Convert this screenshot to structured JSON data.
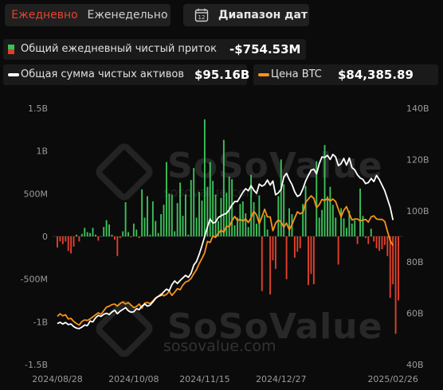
{
  "toolbar": {
    "daily_label": "Ежедневно",
    "weekly_label": "Еженедельно",
    "range_icon_text": "12",
    "range_label": "Диапазон дат"
  },
  "legend": {
    "flow_label": "Общий ежедневный чистый приток",
    "flow_value": "-$754.53M",
    "assets_label": "Общая сумма чистых активов",
    "assets_value": "$95.16B",
    "btc_label": "Цена BTC",
    "btc_value": "$84,385.89"
  },
  "watermark": {
    "brand": "SoSoValue",
    "url": "sosovalue.com"
  },
  "colors": {
    "inflow": "#3cc15a",
    "outflow": "#e2402b",
    "assets_line": "#ffffff",
    "btc_line": "#f7931a",
    "background": "#0b0b0b"
  },
  "chart_data": {
    "type": "bar",
    "xlabel": "",
    "ylabel": "",
    "left_axis": {
      "ylim": [
        -1.5,
        1.5
      ],
      "unit": "B",
      "ticks": [
        "1.5B",
        "1B",
        "500M",
        "0",
        "-500M",
        "-1B",
        "-1.5B"
      ]
    },
    "right_axis": {
      "ylim": [
        40,
        140
      ],
      "unit": "B / K",
      "ticks": [
        "140B",
        "120B",
        "100B",
        "80B",
        "60B",
        "40B"
      ]
    },
    "x_tick_labels": [
      "2024/08/28",
      "2024/10/08",
      "2024/11/15",
      "2024/12/27",
      "2025/02/26"
    ],
    "x_tick_index": [
      0,
      28,
      54,
      82,
      123
    ],
    "series": [
      {
        "name": "Общий ежедневный чистый приток",
        "kind": "bar",
        "axis": "left",
        "unit": "B",
        "values": [
          -0.13,
          -0.06,
          -0.09,
          -0.06,
          -0.17,
          -0.2,
          -0.12,
          0.02,
          -0.06,
          0.03,
          0.1,
          0.05,
          0.04,
          0.1,
          0.02,
          -0.05,
          0.0,
          0.11,
          0.19,
          0.14,
          0.02,
          -0.04,
          -0.23,
          -0.02,
          0.06,
          0.4,
          0.05,
          -0.01,
          0.15,
          0.08,
          -0.02,
          0.55,
          0.22,
          0.47,
          0.02,
          0.41,
          0.18,
          0.04,
          0.26,
          0.37,
          0.87,
          0.5,
          0.49,
          0.06,
          0.39,
          0.63,
          0.24,
          0.49,
          0.02,
          0.66,
          0.8,
          0.22,
          0.52,
          0.42,
          1.37,
          0.58,
          0.87,
          0.65,
          0.49,
          0.18,
          0.45,
          1.13,
          0.51,
          0.7,
          0.67,
          0.13,
          0.22,
          0.38,
          0.41,
          0.27,
          0.11,
          0.72,
          0.4,
          0.15,
          0.48,
          -0.64,
          0.25,
          0.08,
          -0.68,
          -0.28,
          -0.38,
          0.47,
          0.9,
          0.61,
          -0.5,
          0.33,
          0.26,
          -0.25,
          -0.18,
          -0.14,
          0.38,
          0.59,
          -0.57,
          -0.44,
          -0.56,
          0.88,
          0.22,
          0.31,
          1.07,
          0.47,
          0.58,
          0.37,
          0.22,
          -0.33,
          0.33,
          0.21,
          0.1,
          0.3,
          0.15,
          0.19,
          -0.09,
          0.56,
          0.24,
          -0.02,
          -0.09,
          0.09,
          -0.06,
          -0.14,
          -0.17,
          -0.15,
          -0.1,
          -0.23,
          -0.72,
          -0.56,
          -1.14,
          -0.75
        ]
      },
      {
        "name": "Общая сумма чистых активов",
        "kind": "line",
        "axis": "right",
        "unit": "B",
        "values": [
          56.0,
          56.5,
          55.8,
          56.4,
          55.6,
          55.8,
          54.8,
          54.2,
          54.0,
          54.6,
          55.4,
          55.2,
          57.0,
          56.6,
          58.2,
          59.2,
          58.8,
          59.6,
          60.0,
          59.5,
          60.5,
          61.2,
          59.8,
          60.8,
          61.5,
          62.2,
          61.0,
          60.4,
          60.6,
          61.8,
          61.4,
          62.8,
          63.6,
          62.8,
          63.2,
          64.4,
          65.8,
          66.6,
          67.0,
          68.4,
          69.4,
          68.8,
          71.2,
          72.6,
          71.6,
          72.8,
          73.8,
          74.8,
          74.0,
          75.6,
          78.8,
          80.2,
          83.0,
          86.4,
          90.0,
          93.6,
          96.8,
          95.2,
          95.6,
          97.4,
          98.0,
          98.6,
          99.0,
          100.4,
          102.2,
          103.6,
          103.6,
          105.4,
          107.2,
          108.6,
          107.8,
          109.8,
          108.0,
          106.8,
          110.4,
          109.6,
          110.2,
          112.0,
          110.0,
          111.6,
          106.2,
          107.0,
          108.4,
          113.2,
          114.6,
          112.2,
          110.2,
          107.4,
          105.6,
          106.2,
          108.6,
          111.6,
          113.8,
          115.8,
          116.2,
          114.4,
          118.4,
          121.0,
          120.8,
          121.6,
          120.0,
          122.0,
          121.0,
          117.6,
          118.4,
          120.4,
          117.8,
          120.6,
          116.8,
          116.0,
          114.0,
          112.8,
          112.2,
          110.6,
          111.0,
          112.6,
          111.4,
          113.8,
          112.2,
          110.0,
          107.8,
          104.6,
          101.4,
          96.4
        ]
      },
      {
        "name": "Цена BTC",
        "kind": "line",
        "axis": "right",
        "unit": "K",
        "values": [
          58.8,
          59.8,
          59.0,
          59.4,
          57.8,
          58.0,
          56.8,
          56.0,
          55.4,
          56.8,
          57.4,
          57.2,
          57.8,
          58.6,
          59.4,
          60.2,
          59.6,
          61.0,
          62.4,
          62.8,
          63.4,
          63.6,
          62.8,
          63.8,
          64.4,
          63.6,
          64.2,
          63.2,
          62.2,
          62.6,
          63.6,
          62.0,
          64.0,
          64.2,
          63.8,
          64.8,
          66.0,
          66.6,
          67.6,
          66.8,
          67.4,
          68.6,
          67.0,
          68.2,
          69.6,
          69.2,
          71.0,
          72.2,
          72.6,
          73.6,
          75.4,
          77.0,
          79.4,
          81.4,
          83.6,
          88.0,
          87.6,
          90.2,
          89.6,
          91.2,
          92.4,
          91.6,
          94.0,
          93.8,
          96.0,
          97.8,
          96.2,
          96.6,
          96.0,
          96.8,
          95.4,
          97.2,
          99.8,
          98.4,
          95.0,
          97.6,
          100.6,
          97.6,
          97.6,
          92.2,
          95.2,
          96.4,
          95.6,
          93.6,
          95.2,
          92.6,
          94.6,
          97.2,
          99.6,
          98.8,
          99.4,
          103.2,
          104.6,
          105.8,
          104.8,
          101.2,
          102.4,
          104.4,
          104.0,
          104.8,
          103.8,
          104.6,
          103.6,
          100.6,
          97.6,
          100.2,
          101.6,
          98.8,
          96.4,
          96.8,
          96.8,
          96.0,
          96.4,
          96.6,
          95.6,
          97.6,
          98.0,
          96.8,
          96.6,
          96.6,
          95.8,
          92.0,
          88.4,
          86.4
        ]
      }
    ]
  }
}
